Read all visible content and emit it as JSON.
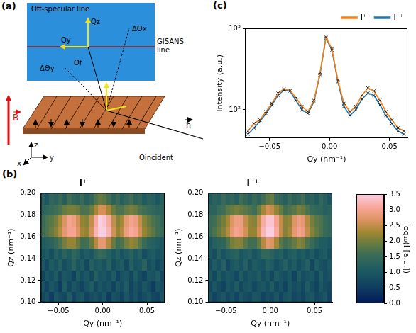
{
  "diagram": {
    "panel": "(a)",
    "detector_label": "Off-specular line",
    "line_label": "GISANS line",
    "axis_labels": [
      "Qz",
      "Qy"
    ],
    "angle_labels": [
      "ΔΘx",
      "ΔΘy",
      "Θf"
    ],
    "incident_label": "Θincident",
    "normal_label": "n",
    "field_label": "B",
    "frame_labels": [
      "z",
      "y",
      "x"
    ]
  },
  "chart_data": [
    {
      "panel": "(c)",
      "type": "line",
      "log": "y",
      "grid": false,
      "legend": "top right",
      "x_label": "Qy (nm⁻¹)",
      "y_label": "Intensity (a.u.)",
      "x": [
        -0.068,
        -0.063,
        -0.058,
        -0.053,
        -0.048,
        -0.043,
        -0.038,
        -0.033,
        -0.028,
        -0.023,
        -0.018,
        -0.013,
        -0.008,
        -0.003,
        0.002,
        0.007,
        0.012,
        0.017,
        0.022,
        0.027,
        0.032,
        0.037,
        0.042,
        0.047,
        0.052,
        0.057,
        0.062
      ],
      "xlim": [
        -0.07,
        0.065
      ],
      "xticks": [
        {
          "value": -0.05,
          "label": "−0.05"
        },
        {
          "value": 0,
          "label": "0.00"
        },
        0.05
      ],
      "ylim": [
        45,
        1000
      ],
      "yticks": [
        {
          "value": 100,
          "label": "10²"
        },
        {
          "value": 1000,
          "label": "10³"
        }
      ],
      "series": [
        {
          "name": "I⁺⁻",
          "color": "#ff7f0e",
          "marker": "x",
          "values": [
            55,
            68,
            75,
            95,
            120,
            160,
            180,
            175,
            140,
            110,
            95,
            130,
            280,
            780,
            560,
            230,
            120,
            95,
            110,
            150,
            185,
            170,
            130,
            95,
            75,
            60,
            55
          ]
        },
        {
          "name": "I⁻⁺",
          "color": "#1f77b4",
          "marker": "x",
          "values": [
            50,
            60,
            72,
            90,
            115,
            150,
            175,
            170,
            130,
            100,
            90,
            125,
            270,
            760,
            540,
            220,
            110,
            85,
            100,
            135,
            160,
            150,
            115,
            85,
            68,
            55,
            50
          ]
        }
      ]
    },
    {
      "panel": "(b)",
      "type": "heatmap",
      "title": "I⁺⁻",
      "grid": false,
      "x_label": "Qy (nm⁻¹)",
      "y_label": "Qz (nm⁻¹)",
      "xlim": [
        -0.07,
        0.07
      ],
      "xticks": [
        {
          "value": -0.05,
          "label": "−0.05"
        },
        {
          "value": 0,
          "label": "0.00"
        },
        0.05
      ],
      "ylim": [
        0.1,
        0.2
      ],
      "yticks": [
        {
          "value": 0.1,
          "label": "0.10"
        },
        0.12,
        0.14,
        0.16,
        0.18,
        {
          "value": 0.2,
          "label": "0.20"
        }
      ],
      "x_bins": [
        -0.07,
        -0.065,
        -0.06,
        -0.055,
        -0.05,
        -0.045,
        -0.04,
        -0.035,
        -0.03,
        -0.025,
        -0.02,
        -0.015,
        -0.01,
        -0.005,
        0,
        0.005,
        0.01,
        0.015,
        0.02,
        0.025,
        0.03,
        0.035,
        0.04,
        0.045,
        0.05,
        0.055,
        0.06,
        0.065,
        0.07
      ],
      "y_bins": [
        0.1,
        0.11,
        0.12,
        0.13,
        0.14,
        0.15,
        0.16,
        0.17,
        0.18,
        0.19,
        0.2
      ],
      "cells": [
        [
          0.7,
          0.9,
          0.5,
          1.0,
          0.8,
          0.7,
          1.1,
          0.6,
          0.9,
          1.0,
          0.6,
          0.8,
          0.9,
          0.7,
          1.0,
          0.5,
          0.9,
          0.8,
          0.6,
          1.0,
          0.7,
          0.9,
          0.6,
          0.8,
          1.0,
          0.7,
          0.6,
          0.9
        ],
        [
          0.9,
          0.6,
          1.0,
          0.8,
          0.5,
          1.1,
          0.7,
          1.0,
          0.8,
          0.6,
          0.9,
          1.1,
          0.7,
          1.0,
          0.8,
          0.9,
          0.6,
          1.0,
          0.8,
          1.1,
          0.6,
          0.9,
          0.7,
          1.0,
          0.8,
          0.5,
          0.9,
          0.8
        ],
        [
          0.6,
          1.0,
          0.8,
          1.1,
          0.7,
          1.0,
          0.9,
          0.6,
          1.1,
          0.8,
          1.0,
          0.7,
          1.2,
          0.9,
          1.0,
          0.8,
          1.1,
          0.6,
          0.9,
          1.0,
          0.7,
          1.1,
          0.8,
          0.6,
          1.0,
          0.9,
          1.1,
          0.7
        ],
        [
          1.0,
          0.7,
          1.1,
          0.9,
          1.2,
          0.8,
          1.0,
          1.3,
          0.9,
          1.1,
          0.7,
          1.2,
          1.0,
          1.1,
          0.9,
          1.2,
          0.8,
          1.0,
          1.1,
          0.7,
          1.2,
          0.9,
          1.0,
          1.3,
          0.8,
          1.0,
          0.7,
          0.9
        ],
        [
          0.9,
          1.1,
          0.8,
          1.2,
          1.0,
          1.3,
          1.1,
          1.4,
          1.2,
          0.9,
          1.1,
          1.0,
          1.3,
          1.5,
          1.4,
          1.2,
          1.0,
          1.2,
          0.9,
          1.1,
          1.3,
          1.0,
          1.2,
          0.8,
          1.0,
          1.1,
          0.9,
          1.0
        ],
        [
          1.1,
          1.2,
          1.3,
          1.5,
          1.7,
          2.0,
          2.2,
          2.2,
          1.9,
          1.6,
          1.6,
          1.9,
          2.4,
          2.8,
          2.8,
          2.4,
          1.9,
          1.6,
          1.7,
          2.0,
          2.2,
          2.1,
          1.8,
          1.5,
          1.3,
          1.2,
          1.1,
          1.0
        ],
        [
          1.6,
          1.7,
          1.9,
          2.1,
          2.4,
          2.8,
          3.0,
          3.0,
          2.7,
          2.3,
          2.2,
          2.6,
          3.2,
          3.5,
          3.5,
          3.2,
          2.6,
          2.2,
          2.4,
          2.9,
          3.1,
          3.0,
          2.6,
          2.2,
          2.0,
          1.8,
          1.6,
          1.5
        ],
        [
          1.5,
          1.7,
          1.8,
          2.0,
          2.3,
          2.7,
          3.0,
          2.9,
          2.6,
          2.2,
          2.1,
          2.5,
          3.1,
          3.5,
          3.4,
          3.1,
          2.5,
          2.1,
          2.3,
          2.8,
          3.0,
          2.9,
          2.5,
          2.1,
          1.9,
          1.7,
          1.6,
          1.4
        ],
        [
          1.3,
          1.4,
          1.5,
          1.6,
          1.7,
          1.9,
          2.0,
          2.0,
          1.9,
          1.7,
          1.7,
          1.9,
          2.3,
          2.6,
          2.6,
          2.3,
          1.9,
          1.7,
          1.7,
          1.9,
          2.0,
          1.9,
          1.7,
          1.6,
          1.5,
          1.4,
          1.3,
          1.3
        ],
        [
          1.2,
          1.0,
          1.4,
          1.3,
          1.5,
          1.2,
          1.6,
          1.4,
          1.3,
          1.5,
          1.2,
          1.4,
          1.7,
          1.9,
          1.8,
          1.6,
          1.3,
          1.5,
          1.2,
          1.4,
          1.6,
          1.3,
          1.4,
          1.1,
          1.3,
          1.2,
          1.0,
          1.2
        ]
      ]
    },
    {
      "type": "heatmap",
      "title": "I⁻⁺",
      "grid": false,
      "x_label": "Qy (nm⁻¹)",
      "y_label": "Qz (nm⁻¹)",
      "xlim": [
        -0.07,
        0.07
      ],
      "xticks": [
        {
          "value": -0.05,
          "label": "−0.05"
        },
        {
          "value": 0,
          "label": "0.00"
        },
        0.05
      ],
      "ylim": [
        0.1,
        0.2
      ],
      "yticks": [
        {
          "value": 0.1,
          "label": "0.10"
        },
        0.12,
        0.14,
        0.16,
        0.18,
        {
          "value": 0.2,
          "label": "0.20"
        }
      ],
      "x_bins": [
        -0.07,
        -0.065,
        -0.06,
        -0.055,
        -0.05,
        -0.045,
        -0.04,
        -0.035,
        -0.03,
        -0.025,
        -0.02,
        -0.015,
        -0.01,
        -0.005,
        0,
        0.005,
        0.01,
        0.015,
        0.02,
        0.025,
        0.03,
        0.035,
        0.04,
        0.045,
        0.05,
        0.055,
        0.06,
        0.065,
        0.07
      ],
      "y_bins": [
        0.1,
        0.11,
        0.12,
        0.13,
        0.14,
        0.15,
        0.16,
        0.17,
        0.18,
        0.19,
        0.2
      ],
      "cells": [
        [
          0.9,
          0.6,
          0.8,
          1.0,
          0.7,
          0.9,
          0.6,
          1.0,
          0.8,
          0.7,
          1.0,
          0.9,
          0.6,
          0.8,
          0.7,
          1.0,
          0.6,
          0.9,
          1.0,
          0.7,
          0.8,
          0.6,
          0.9,
          1.0,
          0.7,
          0.8,
          1.0,
          0.6
        ],
        [
          0.7,
          1.0,
          0.8,
          0.6,
          1.0,
          0.8,
          1.1,
          0.7,
          0.9,
          1.0,
          0.7,
          0.9,
          1.0,
          0.8,
          1.1,
          0.7,
          0.9,
          0.6,
          1.0,
          0.8,
          0.9,
          0.7,
          1.1,
          0.8,
          0.6,
          1.0,
          0.8,
          0.7
        ],
        [
          1.0,
          0.7,
          1.1,
          0.8,
          1.0,
          0.9,
          0.7,
          1.1,
          0.8,
          1.0,
          0.9,
          1.1,
          0.8,
          1.0,
          0.7,
          1.1,
          0.9,
          0.8,
          1.0,
          0.6,
          1.1,
          0.8,
          0.9,
          1.0,
          0.7,
          1.1,
          0.8,
          0.9
        ],
        [
          0.8,
          1.1,
          0.9,
          1.2,
          0.7,
          1.0,
          1.1,
          0.9,
          1.2,
          0.8,
          1.1,
          1.0,
          0.9,
          1.2,
          1.1,
          0.8,
          1.0,
          1.2,
          0.9,
          1.1,
          0.8,
          1.0,
          1.2,
          0.7,
          1.1,
          0.9,
          0.8,
          1.0
        ],
        [
          1.0,
          0.8,
          1.2,
          0.9,
          1.1,
          1.2,
          1.3,
          1.0,
          1.1,
          1.2,
          0.9,
          1.1,
          1.4,
          1.4,
          1.3,
          1.1,
          1.2,
          0.9,
          1.1,
          1.2,
          1.0,
          1.1,
          0.9,
          1.1,
          0.8,
          1.0,
          1.1,
          0.8
        ],
        [
          1.0,
          1.2,
          1.3,
          1.4,
          1.7,
          2.0,
          2.1,
          2.1,
          1.8,
          1.6,
          1.6,
          1.9,
          2.4,
          2.8,
          2.7,
          2.3,
          1.8,
          1.6,
          1.7,
          1.9,
          2.1,
          2.0,
          1.7,
          1.5,
          1.3,
          1.1,
          1.1,
          1.0
        ],
        [
          1.5,
          1.7,
          1.9,
          2.1,
          2.4,
          2.8,
          3.0,
          2.9,
          2.6,
          2.2,
          2.2,
          2.6,
          3.2,
          3.5,
          3.5,
          3.1,
          2.5,
          2.1,
          2.3,
          2.8,
          3.0,
          2.9,
          2.5,
          2.1,
          1.9,
          1.7,
          1.5,
          1.4
        ],
        [
          1.5,
          1.6,
          1.8,
          2.0,
          2.3,
          2.7,
          2.9,
          2.9,
          2.5,
          2.2,
          2.1,
          2.5,
          3.1,
          3.4,
          3.4,
          3.0,
          2.5,
          2.1,
          2.2,
          2.7,
          2.9,
          2.8,
          2.4,
          2.0,
          1.8,
          1.7,
          1.5,
          1.4
        ],
        [
          1.3,
          1.3,
          1.5,
          1.6,
          1.8,
          1.9,
          2.0,
          1.9,
          1.8,
          1.7,
          1.6,
          1.9,
          2.3,
          2.6,
          2.5,
          2.2,
          1.9,
          1.6,
          1.7,
          1.8,
          2.0,
          1.9,
          1.7,
          1.5,
          1.4,
          1.4,
          1.2,
          1.3
        ],
        [
          1.1,
          1.3,
          1.2,
          1.5,
          1.3,
          1.4,
          1.2,
          1.6,
          1.4,
          1.2,
          1.5,
          1.3,
          1.6,
          1.8,
          1.9,
          1.5,
          1.4,
          1.2,
          1.5,
          1.3,
          1.4,
          1.6,
          1.2,
          1.3,
          1.1,
          1.4,
          1.2,
          1.0
        ]
      ],
      "colorbar": {
        "label": "log₁₀(I [a.u.])",
        "range": [
          0,
          3.5
        ],
        "ticks": [
          {
            "value": 0,
            "label": "0.0"
          },
          0.5,
          {
            "value": 1,
            "label": "1.0"
          },
          1.5,
          {
            "value": 2,
            "label": "2.0"
          },
          2.5,
          {
            "value": 3,
            "label": "3.0"
          },
          3.5
        ]
      }
    }
  ]
}
